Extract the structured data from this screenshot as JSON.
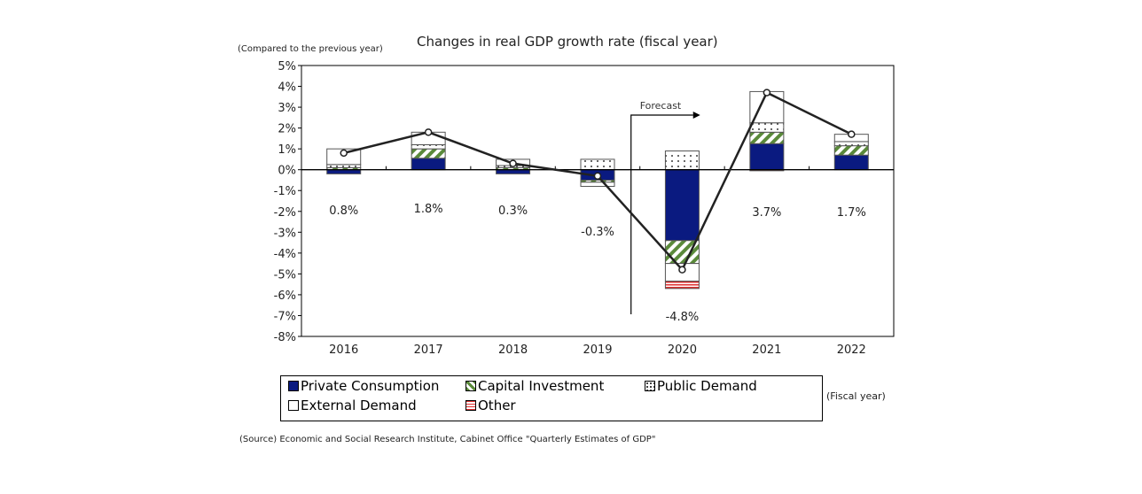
{
  "chart_data": {
    "type": "bar",
    "stacked": true,
    "title": "Changes in real GDP growth rate (fiscal year)",
    "ylabel": "(Compared to the previous year)",
    "xlabel": "(Fiscal year)",
    "ylim": [
      -8,
      5
    ],
    "yticks": [
      "5%",
      "4%",
      "3%",
      "2%",
      "1%",
      "0%",
      "-1%",
      "-2%",
      "-3%",
      "-4%",
      "-5%",
      "-6%",
      "-7%",
      "-8%"
    ],
    "categories": [
      "2016",
      "2017",
      "2018",
      "2019",
      "2020",
      "2021",
      "2022"
    ],
    "series": [
      {
        "name": "Private Consumption",
        "color": "#0a1a80",
        "values": [
          -0.2,
          0.55,
          -0.2,
          -0.5,
          -3.4,
          1.25,
          0.7
        ]
      },
      {
        "name": "Capital Investment",
        "color": "#5a8a3a",
        "values": [
          0.1,
          0.45,
          0.1,
          -0.1,
          -1.1,
          0.55,
          0.45
        ]
      },
      {
        "name": "Public Demand",
        "color": "#ffffff",
        "values": [
          0.15,
          0.2,
          0.1,
          0.5,
          0.9,
          0.45,
          0.2
        ]
      },
      {
        "name": "External Demand",
        "color": "#ffffff",
        "values": [
          0.75,
          0.6,
          0.3,
          -0.2,
          -0.85,
          1.5,
          0.35
        ]
      },
      {
        "name": "Other",
        "color": "#e03030",
        "values": [
          0,
          0,
          0,
          0,
          -0.35,
          -0.05,
          0
        ]
      }
    ],
    "total": {
      "values": [
        0.8,
        1.8,
        0.3,
        -0.3,
        -4.8,
        3.7,
        1.7
      ],
      "labels": [
        "0.8%",
        "1.8%",
        "0.3%",
        "-0.3%",
        "-4.8%",
        "3.7%",
        "1.7%"
      ]
    },
    "annotation": "Forecast",
    "legend": "bottom",
    "grid": false
  },
  "source": "(Source) Economic and Social Research Institute, Cabinet Office \"Quarterly Estimates of GDP\""
}
